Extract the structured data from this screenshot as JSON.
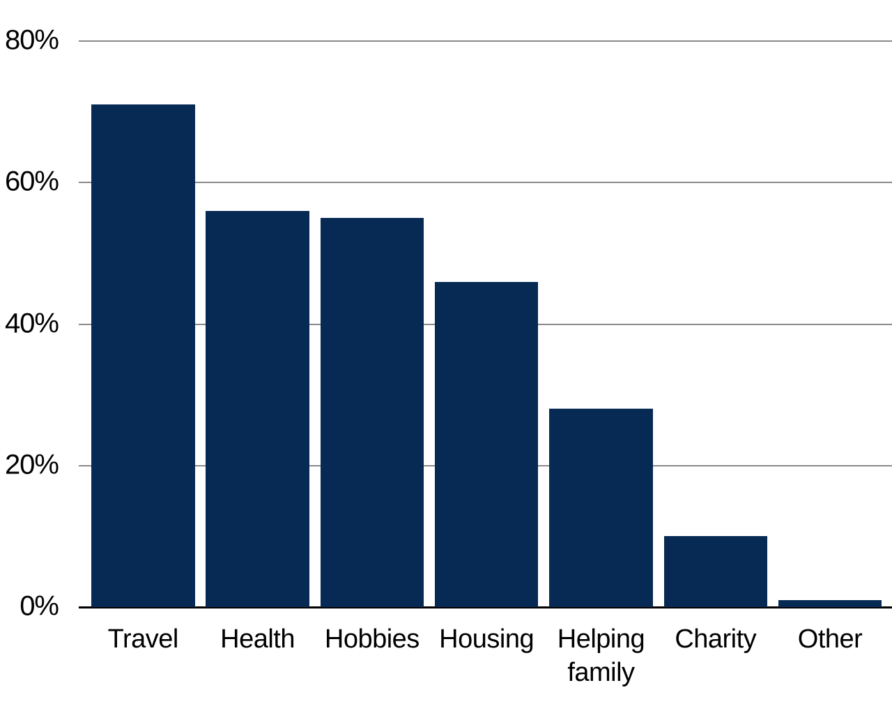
{
  "chart_data": {
    "type": "bar",
    "title": "",
    "xlabel": "",
    "ylabel": "",
    "categories": [
      "Travel",
      "Health",
      "Hobbies",
      "Housing",
      "Helping family",
      "Charity",
      "Other"
    ],
    "values": [
      71,
      56,
      55,
      46,
      28,
      10,
      1
    ],
    "unit": "%",
    "x_tick_labels": [
      "Travel",
      "Health",
      "Hobbies",
      "Housing",
      "Helping\nfamily",
      "Charity",
      "Other"
    ],
    "yticks": [
      0,
      20,
      40,
      60,
      80
    ],
    "ytick_labels": [
      "0%",
      "20%",
      "40%",
      "60%",
      "80%"
    ],
    "ylim": [
      0,
      80
    ],
    "grid": true,
    "legend_position": "none",
    "colors": {
      "bar": "#072a55",
      "gridline": "#8a8a8a",
      "axis_line": "#000000",
      "label_text": "#000000",
      "background": "#ffffff"
    }
  }
}
